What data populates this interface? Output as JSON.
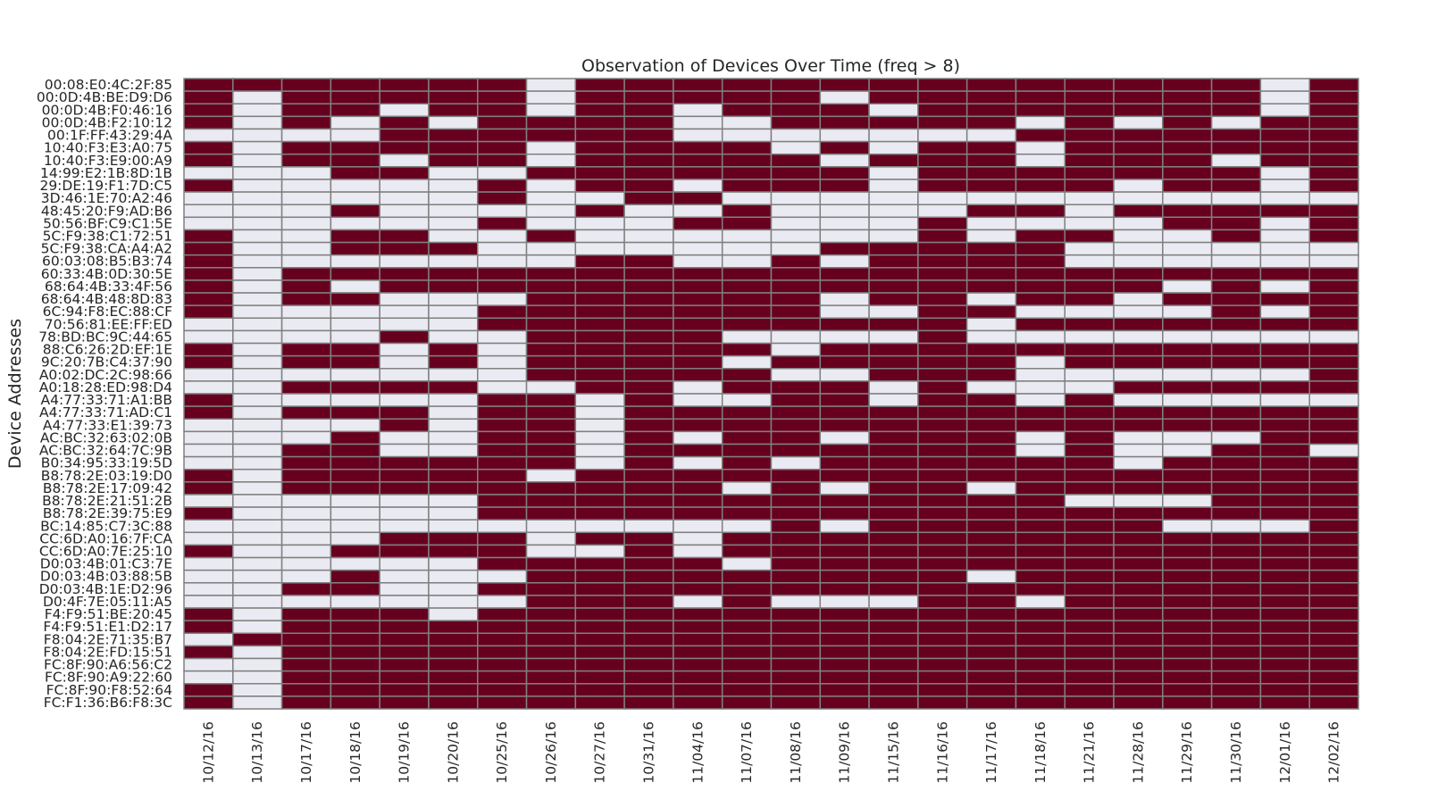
{
  "chart_data": {
    "type": "heatmap",
    "title": "Observation of Devices Over Time (freq > 8)",
    "xlabel": "",
    "ylabel": "Device Addresses",
    "colors": {
      "observed": "#67001f",
      "not_observed": "#eaeaf2",
      "cell_border": "#808080"
    },
    "x_categories": [
      "10/12/16",
      "10/13/16",
      "10/17/16",
      "10/18/16",
      "10/19/16",
      "10/20/16",
      "10/25/16",
      "10/26/16",
      "10/27/16",
      "10/31/16",
      "11/04/16",
      "11/07/16",
      "11/08/16",
      "11/09/16",
      "11/15/16",
      "11/16/16",
      "11/17/16",
      "11/18/16",
      "11/21/16",
      "11/28/16",
      "11/29/16",
      "11/30/16",
      "12/01/16",
      "12/02/16"
    ],
    "y_categories": [
      "00:08:E0:4C:2F:85",
      "00:0D:4B:BE:D9:D6",
      "00:0D:4B:F0:46:16",
      "00:0D:4B:F2:10:12",
      "00:1F:FF:43:29:4A",
      "10:40:F3:E3:A0:75",
      "10:40:F3:E9:00:A9",
      "14:99:E2:1B:8D:1B",
      "29:DE:19:F1:7D:C5",
      "3D:46:1E:70:A2:46",
      "48:45:20:F9:AD:B6",
      "50:56:BF:C9:C1:5E",
      "5C:F9:38:C1:72:51",
      "5C:F9:38:CA:A4:A2",
      "60:03:08:B5:B3:74",
      "60:33:4B:0D:30:5E",
      "68:64:4B:33:4F:56",
      "68:64:4B:48:8D:83",
      "6C:94:F8:EC:88:CF",
      "70:56:81:EE:FF:ED",
      "78:BD:BC:9C:44:65",
      "88:C6:26:2D:EF:1E",
      "9C:20:7B:C4:37:90",
      "A0:02:DC:2C:98:66",
      "A0:18:28:ED:98:D4",
      "A4:77:33:71:A1:BB",
      "A4:77:33:71:AD:C1",
      "A4:77:33:E1:39:73",
      "AC:BC:32:63:02:0B",
      "AC:BC:32:64:7C:9B",
      "B0:34:95:33:19:5D",
      "B8:78:2E:03:19:D0",
      "B8:78:2E:17:09:42",
      "B8:78:2E:21:51:2B",
      "B8:78:2E:39:75:E9",
      "BC:14:85:C7:3C:88",
      "CC:6D:A0:16:7F:CA",
      "CC:6D:A0:7E:25:10",
      "D0:03:4B:01:C3:7E",
      "D0:03:4B:03:88:5B",
      "D0:03:4B:1E:D2:96",
      "D0:4F:7E:05:11:A5",
      "F4:F9:51:BE:20:45",
      "F4:F9:51:E1:D2:17",
      "F8:04:2E:71:35:B7",
      "F8:04:2E:FD:15:51",
      "FC:8F:90:A6:56:C2",
      "FC:8F:90:A9:22:60",
      "FC:8F:90:F8:52:64",
      "FC:F1:36:B6:F8:3C"
    ],
    "values": [
      "111111101111111111111101",
      "101111101111101111111101",
      "101101101101110111111101",
      "101010111100111110101011",
      "000011111100000001111111",
      "101111101111010110111111",
      "101101101111101110111011",
      "000110011111110111111101",
      "100000101101110111101101",
      "000000100110000000000000",
      "000100001001000011011111",
      "000000100011000100001101",
      "100110010000000101100101",
      "100111000000011111000000",
      "100000001100101111000000",
      "101111111111111111111111",
      "101011111111111111110101",
      "101100011111101101101111",
      "100000111111100110000101",
      "000000111111111101111111",
      "000010011110000100000000",
      "101101011111011111111111",
      "101101011110111110111111",
      "000000011111001110000001",
      "001111001101110100011111",
      "100000110100110110100000",
      "101110110111111111111111",
      "000010110111111111111111",
      "000100110101101110100011",
      "001100110111111110100110",
      "001111110101011111101111",
      "101111101111111111111111",
      "101111111110101101111111",
      "000000111111111111000111",
      "100000111111111111111111",
      "000000000000101111110001",
      "000011101101111111111111",
      "100111100101111111111111",
      "000000111110111111111111",
      "000100011111111101111111",
      "001100111111111111111111",
      "000000011101000110111111",
      "101110111111111111111111",
      "101111111111111111111111",
      "011111111111111111111111",
      "101111111111111111111111",
      "001111111111111111111111",
      "001111111111111111111111",
      "101111111111111111111111",
      "101111111111111111111111"
    ],
    "legend": "none",
    "grid": false
  }
}
